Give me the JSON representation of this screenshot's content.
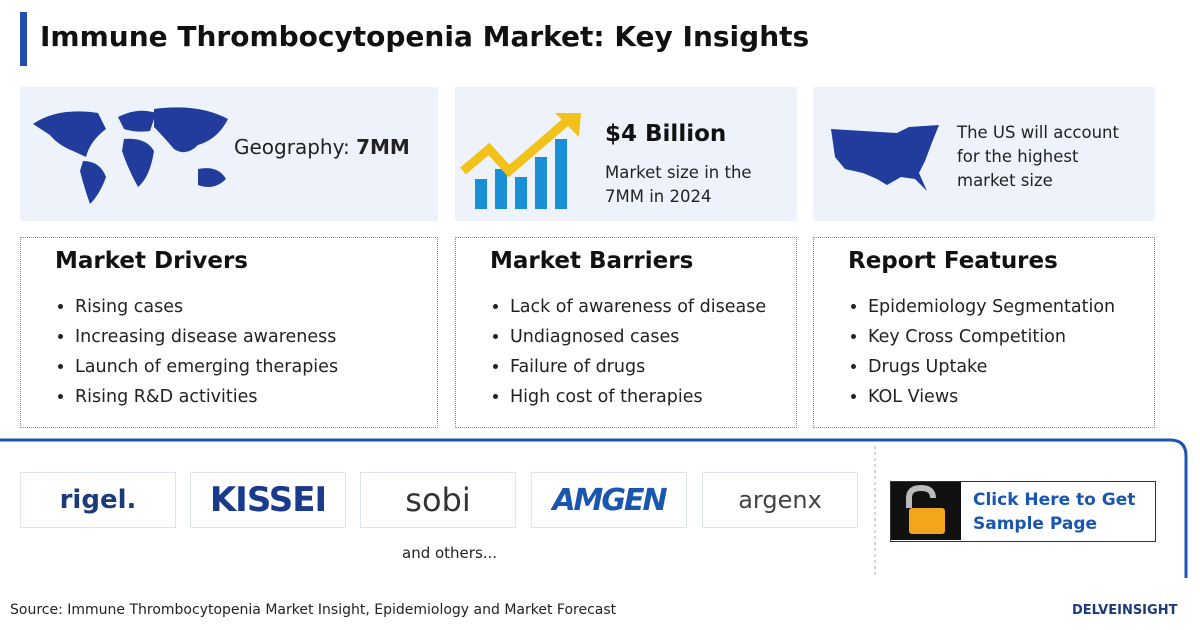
{
  "header": {
    "title": "Immune Thrombocytopenia Market: Key Insights"
  },
  "highlights": [
    {
      "label": "Geography:",
      "value": "7MM"
    },
    {
      "value": "$4 Billion",
      "text": "Market size in the 7MM in 2024"
    },
    {
      "text": "The US will account for the highest market size"
    }
  ],
  "sections": [
    {
      "title": "Market Drivers",
      "items": [
        "Rising cases",
        "Increasing disease awareness",
        "Launch of emerging therapies",
        "Rising R&D activities"
      ]
    },
    {
      "title": "Market Barriers",
      "items": [
        "Lack of awareness of disease",
        "Undiagnosed cases",
        "Failure of drugs",
        "High cost of therapies"
      ]
    },
    {
      "title": "Report Features",
      "items": [
        "Epidemiology Segmentation",
        "Key Cross Competition",
        "Drugs Uptake",
        "KOL Views"
      ]
    }
  ],
  "companies": [
    "rigel.",
    "KISSEI",
    "sobi",
    "AMGEN",
    "argenx"
  ],
  "companies_note": "and others...",
  "cta": "Click Here to Get Sample Page",
  "footer": {
    "source": "Source: Immune Thrombocytopenia Market Insight, Epidemiology and Market Forecast",
    "brand": "DELVEINSIGHT"
  }
}
